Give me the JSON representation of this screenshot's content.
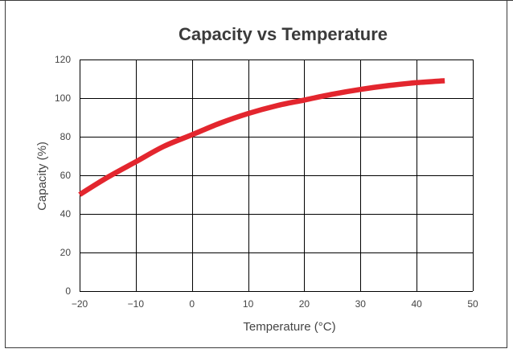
{
  "colors": {
    "series": "#e3262e",
    "grid": "#000000",
    "text": "#444444",
    "title": "#3b3b3b"
  },
  "chart_data": {
    "type": "line",
    "title": "Capacity vs Temperature",
    "xlabel": "Temperature (°C)",
    "ylabel": "Capacity (%)",
    "xlim": [
      -20,
      50
    ],
    "ylim": [
      0,
      120
    ],
    "xticks": [
      -20,
      -10,
      0,
      10,
      20,
      30,
      40,
      50
    ],
    "yticks": [
      0,
      20,
      40,
      60,
      80,
      100,
      120
    ],
    "xtick_labels": [
      "−20",
      "−10",
      "0",
      "10",
      "20",
      "30",
      "40",
      "50"
    ],
    "ytick_labels": [
      "0",
      "20",
      "40",
      "60",
      "80",
      "100",
      "120"
    ],
    "grid": true,
    "series": [
      {
        "x": [
          -20,
          -15,
          -10,
          -5,
          0,
          5,
          10,
          15,
          20,
          25,
          30,
          35,
          40,
          45
        ],
        "y": [
          50,
          59,
          67,
          75,
          81,
          87,
          92,
          96,
          99,
          102,
          104.5,
          106.5,
          108,
          109
        ]
      }
    ]
  }
}
